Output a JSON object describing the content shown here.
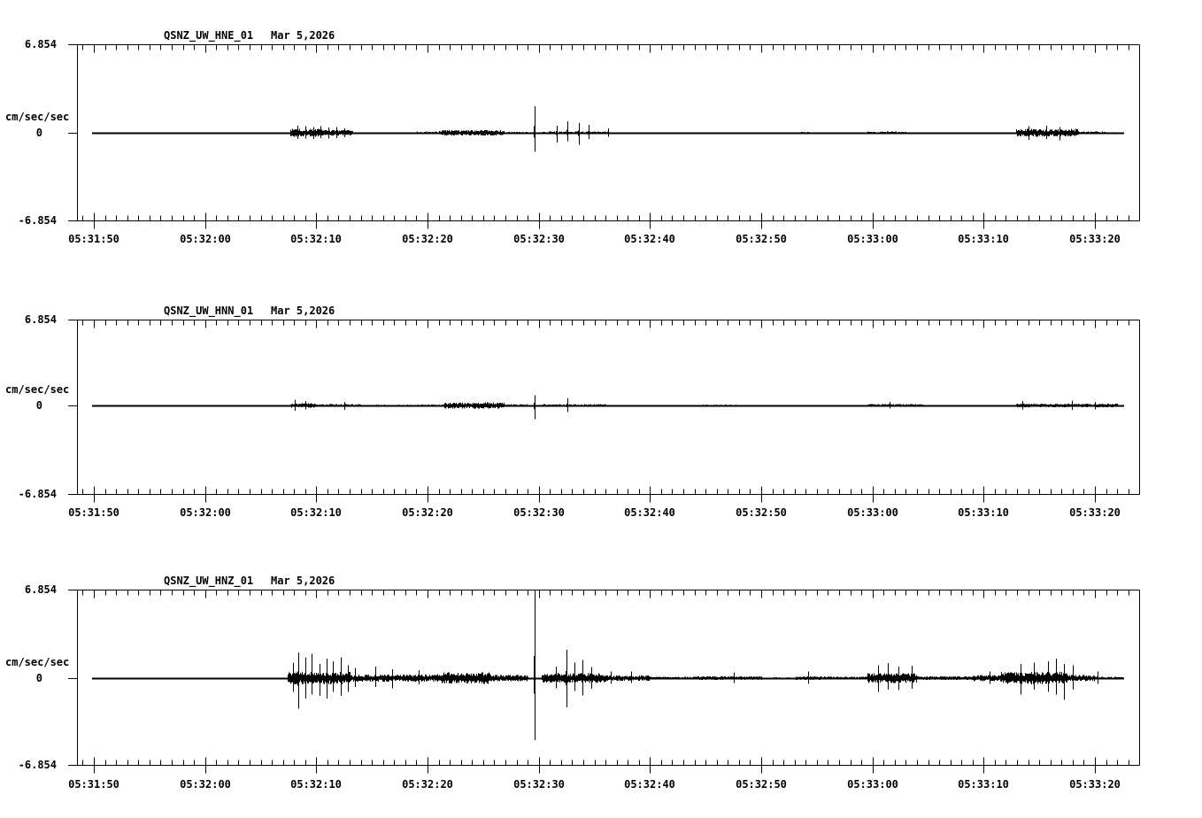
{
  "app": {
    "background": "#ffffff",
    "foreground": "#000000"
  },
  "chart_data": {
    "type": "line",
    "subtype": "seismogram-3-component",
    "grid": "off",
    "trace_color": "#000000",
    "units_label": "cm/sec/sec",
    "ylim": [
      -6.854,
      6.854
    ],
    "y_tick_labels": [
      "6.854",
      "0",
      "-6.854"
    ],
    "x_axis_start_time": "05:31:50",
    "x_tick_labels": [
      "05:31:50",
      "05:32:00",
      "05:32:10",
      "05:32:20",
      "05:32:30",
      "05:32:40",
      "05:32:50",
      "05:33:00",
      "05:33:10",
      "05:33:20"
    ],
    "x_tick_offsets_sec": [
      0,
      10,
      20,
      30,
      40,
      50,
      60,
      70,
      80,
      90
    ],
    "x_minor_tick_interval_sec": 1,
    "panels": [
      {
        "channel": "QSNZ_UW_HNE_01",
        "date": "Mar 5,2026",
        "units": "cm/sec/sec",
        "y_max_label": "6.854",
        "y_zero_label": "0",
        "y_min_label": "-6.854",
        "trace": {
          "t_start": -0.2,
          "t_end": 92.6,
          "base_amp": 0.03,
          "bursts": [
            [
              17.6,
              20.5,
              0.32
            ],
            [
              20.5,
              23.3,
              0.22
            ],
            [
              23.3,
              29,
              0.05
            ],
            [
              29,
              31,
              0.1
            ],
            [
              31,
              36.9,
              0.22
            ],
            [
              36.9,
              39,
              0.07
            ],
            [
              40.3,
              46,
              0.1
            ],
            [
              54,
              58,
              0.05
            ],
            [
              63,
              64.5,
              0.06
            ],
            [
              69.5,
              73,
              0.1
            ],
            [
              75.5,
              78,
              0.05
            ],
            [
              82.9,
              88.5,
              0.3
            ],
            [
              88.5,
              91,
              0.1
            ]
          ],
          "spikes": [
            [
              18.3,
              0.55,
              0.5
            ],
            [
              19.0,
              0.5,
              0.45
            ],
            [
              19.7,
              0.45,
              0.5
            ],
            [
              20.4,
              0.5,
              0.4
            ],
            [
              21.1,
              0.4,
              0.45
            ],
            [
              21.8,
              0.45,
              0.4
            ],
            [
              22.5,
              0.35,
              0.35
            ],
            [
              39.6,
              2.05,
              1.5
            ],
            [
              41.6,
              0.55,
              0.75
            ],
            [
              42.6,
              0.9,
              0.65
            ],
            [
              43.6,
              0.75,
              0.95
            ],
            [
              44.5,
              0.6,
              0.5
            ],
            [
              46.2,
              0.35,
              0.3
            ],
            [
              84.0,
              0.5,
              0.55
            ],
            [
              85.6,
              0.55,
              0.5
            ],
            [
              86.8,
              0.45,
              0.6
            ]
          ]
        }
      },
      {
        "channel": "QSNZ_UW_HNN_01",
        "date": "Mar 5,2026",
        "units": "cm/sec/sec",
        "y_max_label": "6.854",
        "y_zero_label": "0",
        "y_min_label": "-6.854",
        "trace": {
          "t_start": -0.2,
          "t_end": 92.6,
          "base_amp": 0.03,
          "bursts": [
            [
              17.6,
              20,
              0.18
            ],
            [
              20,
              24,
              0.12
            ],
            [
              24,
              29,
              0.06
            ],
            [
              29,
              31.5,
              0.08
            ],
            [
              31.5,
              36.9,
              0.25
            ],
            [
              36.9,
              39,
              0.1
            ],
            [
              40.3,
              46,
              0.1
            ],
            [
              47,
              52,
              0.05
            ],
            [
              54,
              58,
              0.06
            ],
            [
              69.5,
              74.5,
              0.12
            ],
            [
              75.5,
              80,
              0.05
            ],
            [
              82.9,
              92,
              0.15
            ]
          ],
          "spikes": [
            [
              18.1,
              0.45,
              0.4
            ],
            [
              19.0,
              0.35,
              0.3
            ],
            [
              22.5,
              0.3,
              0.35
            ],
            [
              39.6,
              0.8,
              1.05
            ],
            [
              42.6,
              0.55,
              0.5
            ],
            [
              71.5,
              0.3,
              0.25
            ],
            [
              83.5,
              0.35,
              0.3
            ],
            [
              87.9,
              0.4,
              0.35
            ],
            [
              90.0,
              0.3,
              0.3
            ]
          ]
        }
      },
      {
        "channel": "QSNZ_UW_HNZ_01",
        "date": "Mar 5,2026",
        "units": "cm/sec/sec",
        "y_max_label": "6.854",
        "y_zero_label": "0",
        "y_min_label": "-6.854",
        "trace": {
          "t_start": -0.2,
          "t_end": 92.6,
          "base_amp": 0.04,
          "bursts": [
            [
              17.4,
              23,
              0.5
            ],
            [
              23,
              28,
              0.28
            ],
            [
              28,
              31,
              0.3
            ],
            [
              31,
              35.6,
              0.45
            ],
            [
              35.6,
              39,
              0.25
            ],
            [
              40.2,
              46,
              0.4
            ],
            [
              46,
              50,
              0.22
            ],
            [
              50,
              54,
              0.1
            ],
            [
              54,
              60,
              0.15
            ],
            [
              61,
              63,
              0.06
            ],
            [
              63,
              66.5,
              0.14
            ],
            [
              66.5,
              69.5,
              0.12
            ],
            [
              69.5,
              74,
              0.4
            ],
            [
              74,
              79,
              0.15
            ],
            [
              79,
              81.5,
              0.25
            ],
            [
              81.5,
              87.5,
              0.5
            ],
            [
              87.5,
              90,
              0.25
            ],
            [
              90,
              92.5,
              0.1
            ]
          ],
          "spikes": [
            [
              17.9,
              1.2,
              1.1
            ],
            [
              18.4,
              2.0,
              2.4
            ],
            [
              19.0,
              1.6,
              1.6
            ],
            [
              19.6,
              1.9,
              1.3
            ],
            [
              20.3,
              1.1,
              1.4
            ],
            [
              20.9,
              1.5,
              1.6
            ],
            [
              21.5,
              1.3,
              1.1
            ],
            [
              22.2,
              1.6,
              1.4
            ],
            [
              22.8,
              1.0,
              1.1
            ],
            [
              23.5,
              0.8,
              0.7
            ],
            [
              25.3,
              0.9,
              0.7
            ],
            [
              26.8,
              0.7,
              0.8
            ],
            [
              29.2,
              0.6,
              0.5
            ],
            [
              39.6,
              6.9,
              4.9
            ],
            [
              41.5,
              0.9,
              0.8
            ],
            [
              42.5,
              2.2,
              2.3
            ],
            [
              43.2,
              1.2,
              1.0
            ],
            [
              43.9,
              1.4,
              1.35
            ],
            [
              44.7,
              0.85,
              0.85
            ],
            [
              46.5,
              0.5,
              0.45
            ],
            [
              48.3,
              0.5,
              0.4
            ],
            [
              57.5,
              0.45,
              0.4
            ],
            [
              64.2,
              0.5,
              0.45
            ],
            [
              70.5,
              1.0,
              1.1
            ],
            [
              71.4,
              1.15,
              0.9
            ],
            [
              72.3,
              0.9,
              0.95
            ],
            [
              73.5,
              0.95,
              0.85
            ],
            [
              80.5,
              0.5,
              0.45
            ],
            [
              83.3,
              1.1,
              1.3
            ],
            [
              84.5,
              1.2,
              0.9
            ],
            [
              85.8,
              1.3,
              1.1
            ],
            [
              86.5,
              1.5,
              1.3
            ],
            [
              87.2,
              1.1,
              1.7
            ],
            [
              88.0,
              1.0,
              0.9
            ],
            [
              90.2,
              0.5,
              0.45
            ]
          ]
        }
      }
    ]
  }
}
